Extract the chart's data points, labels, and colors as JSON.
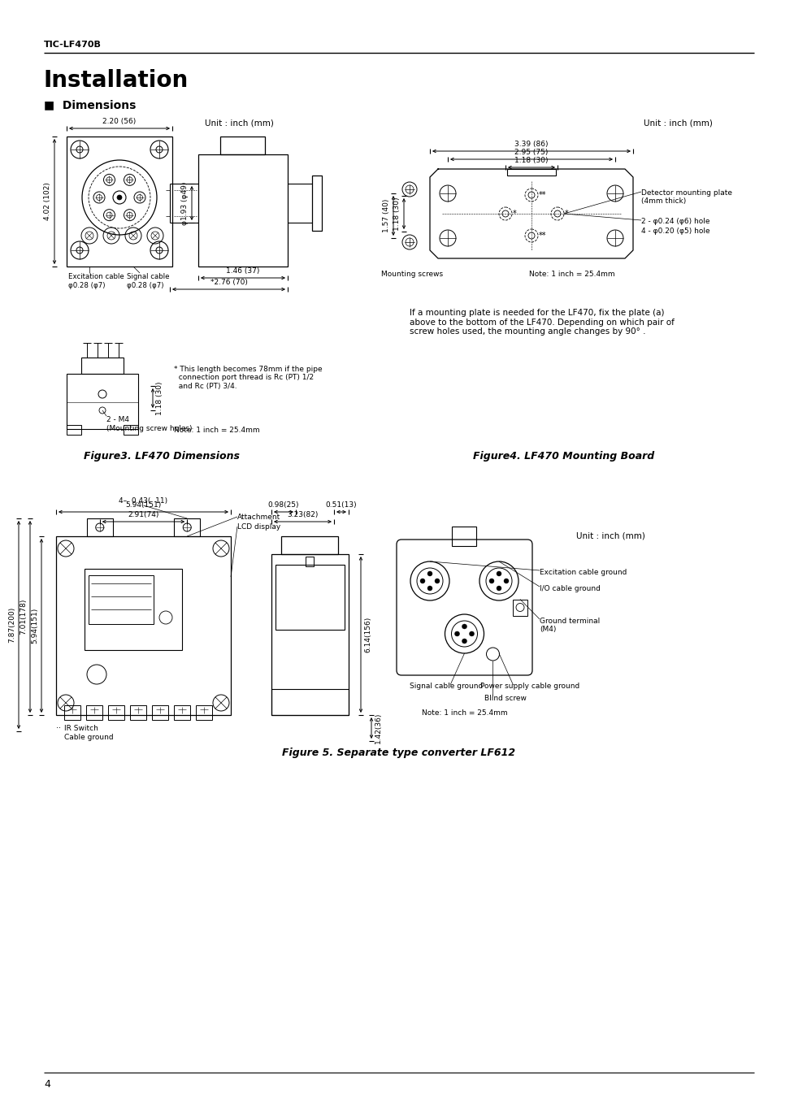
{
  "page_title": "TIC-LF470B",
  "section_title": "Installation",
  "subsection_title": "Dimensions",
  "unit_label": "Unit : inch (mm)",
  "background_color": "#ffffff",
  "text_color": "#000000",
  "line_color": "#000000",
  "figure3_caption": "Figure3. LF470 Dimensions",
  "figure4_caption": "Figure4. LF470 Mounting Board",
  "figure5_caption": "Figure 5. Separate type converter LF612",
  "note1": "Note: 1 inch = 25.4mm",
  "mounting_text": "If a mounting plate is needed for the LF470, fix the plate (a)\nabove to the bottom of the LF470. Depending on which pair of\nscrew holes used, the mounting angle changes by 90° .",
  "asterisk_note": "* This length becomes 78mm if the pipe\n  connection port thread is Rc (PT) 1/2\n  and Rc (PT) 3/4.",
  "page_number": "4",
  "dim_220_56": "2.20 (56)",
  "dim_402_102": "4.02 (102)",
  "dim_193_49": "φ1.93 (φ49)",
  "dim_146_37": "1.46 (37)",
  "dim_276_70": "*2.76 (70)",
  "dim_028_7_exc": "φ0.28 (φ7)",
  "dim_028_7_sig": "φ0.28 (φ7)",
  "dim_118_30_bv": "1.18 (30)",
  "label_exc": "Excitation cable",
  "label_sig": "Signal cable",
  "label_2m4": "2 - M4",
  "label_mounting_holes": "(Mounting screw holes)",
  "dim_339_86": "3.39 (86)",
  "dim_295_75": "2.95 (75)",
  "dim_118_30": "1.18 (30)",
  "dim_157_40": "1.57 (40)",
  "label_det_plate": "Detector mounting plate\n(4mm thick)",
  "label_mounting_screws": "Mounting screws",
  "label_hole1": "2 - φ0.24 (φ6) hole",
  "label_hole2": "4 - φ0.20 (φ5) hole",
  "dim_594_151": "5.94(151)",
  "dim_291_74": "2.91(74)",
  "dim_043_11": "4–  0.43(  11)",
  "label_attachment": "Attachment",
  "label_lcd": "LCD display",
  "dim_594_151b": "5.94(151)",
  "dim_701_178": "7.01(178)",
  "dim_787_200": "7.87(200)",
  "dim_614_156": "6.14(156)",
  "dim_142_36": "1.42(36)",
  "label_ir": "IR Switch",
  "label_cable_gnd": "Cable ground",
  "dim_098_25": "0.98(25)",
  "dim_323_82": "3.23(82)",
  "dim_051_13": "0.51(13)",
  "label_exc_gnd": "Excitation cable ground",
  "label_io_gnd": "I/O cable ground",
  "label_gnd_term": "Ground terminal\n(M4)",
  "label_sig_gnd": "Signal cable ground",
  "label_pwr_gnd": "Power supply cable ground",
  "label_blind": "Blind screw"
}
